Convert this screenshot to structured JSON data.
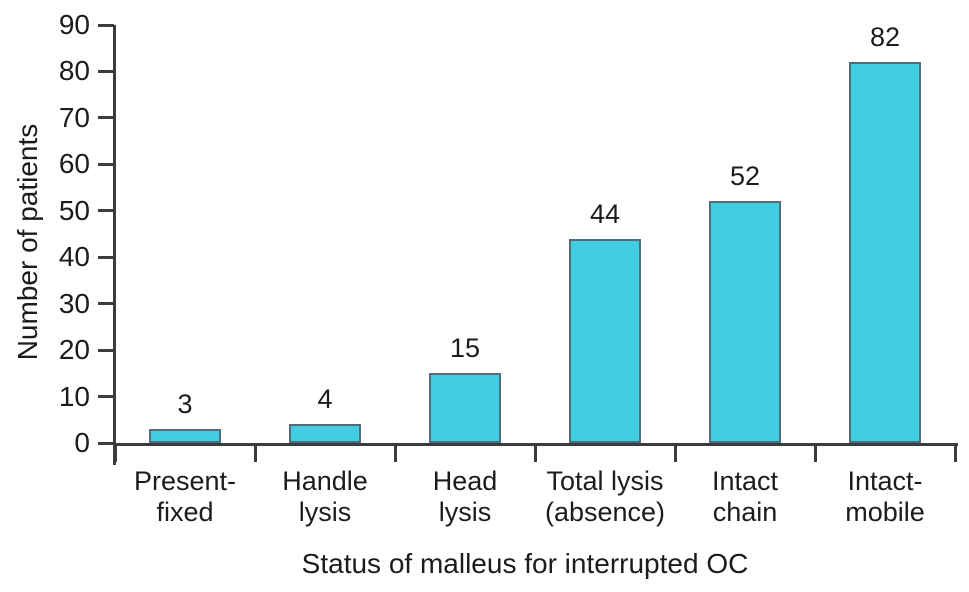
{
  "chart_data": {
    "type": "bar",
    "categories": [
      "Present-\nfixed",
      "Handle\nlysis",
      "Head\nlysis",
      "Total lysis\n(absence)",
      "Intact\nchain",
      "Intact-\nmobile"
    ],
    "values": [
      3,
      4,
      15,
      44,
      52,
      82
    ],
    "xlabel": "Status of malleus for interrupted OC",
    "ylabel": "Number of patients",
    "ylim": [
      0,
      90
    ],
    "ytick_step": 10,
    "ytick_labels": [
      "0",
      "10",
      "20",
      "30",
      "40",
      "50",
      "60",
      "70",
      "80",
      "90"
    ],
    "value_labels": [
      "3",
      "4",
      "15",
      "44",
      "52",
      "82"
    ],
    "grid": false,
    "legend_position": "none",
    "colors": {
      "bar_fill": "#41cde2",
      "bar_border": "#4e6e7a",
      "axis": "#3c3c3c",
      "text": "#1c1c1c",
      "background": "#ffffff"
    }
  }
}
